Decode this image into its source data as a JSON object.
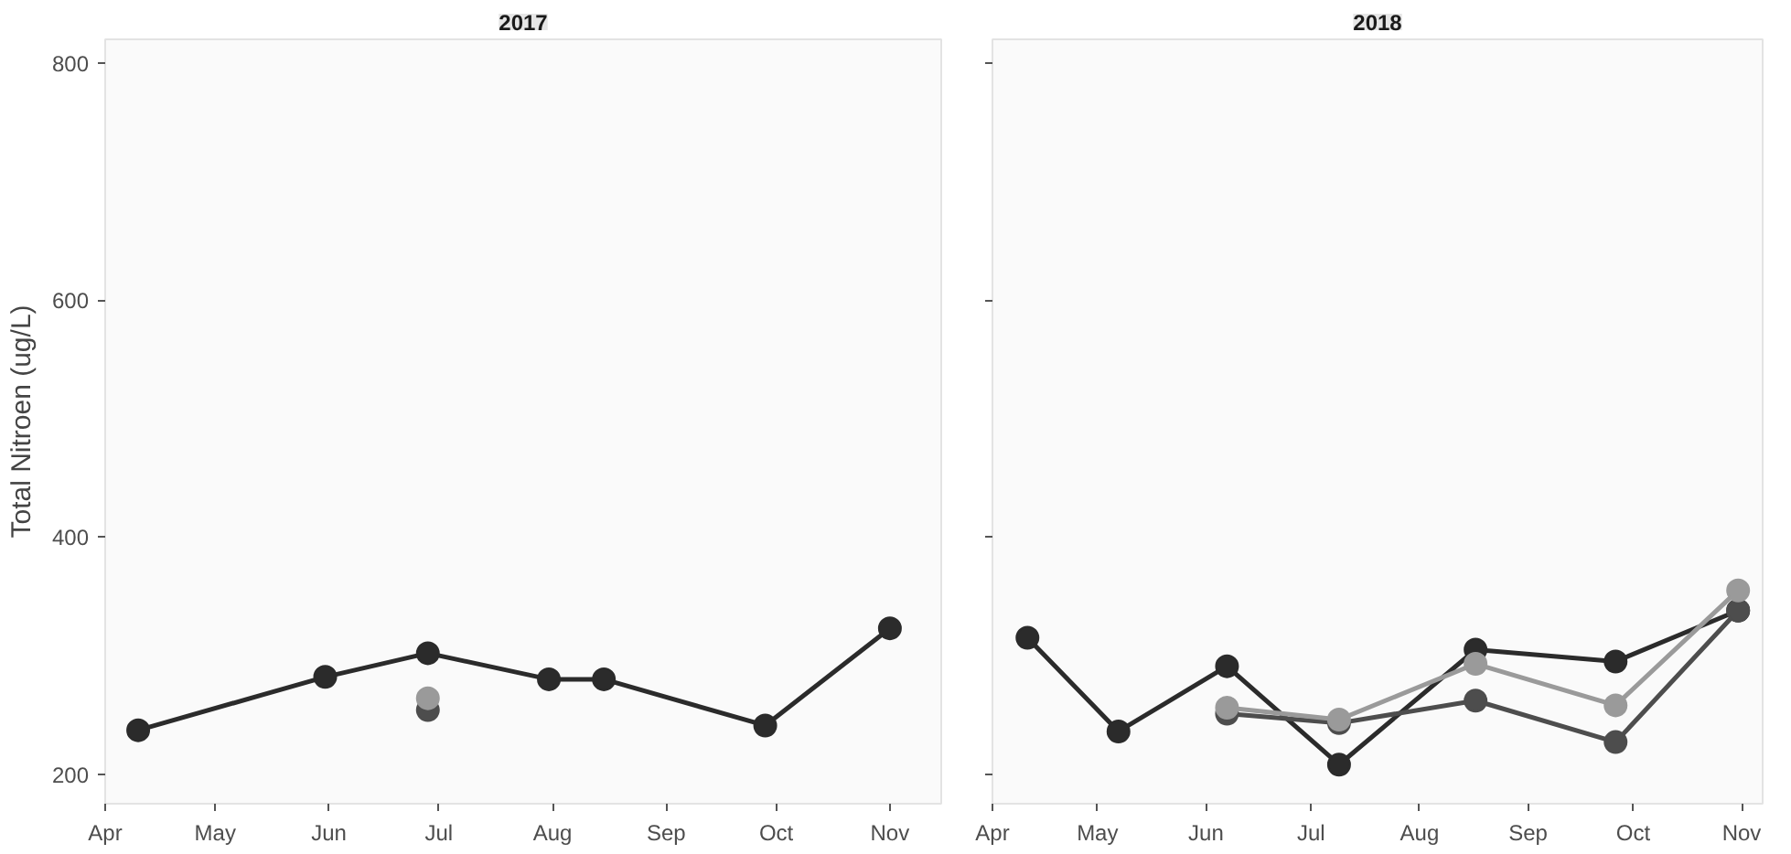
{
  "chart_data": [
    {
      "type": "line",
      "title": "2017",
      "ylabel": "Total Nitroen (ug/L)",
      "marker": "circle",
      "line_style": "solid",
      "xlim": [
        "2017-04-01",
        "2017-11-15"
      ],
      "ylim": [
        175,
        820
      ],
      "yticks": [
        200,
        400,
        600,
        800
      ],
      "xticks": [
        {
          "value": "2017-04-01",
          "label": "Apr"
        },
        {
          "value": "2017-05-01",
          "label": "May"
        },
        {
          "value": "2017-06-01",
          "label": "Jun"
        },
        {
          "value": "2017-07-01",
          "label": "Jul"
        },
        {
          "value": "2017-08-01",
          "label": "Aug"
        },
        {
          "value": "2017-09-01",
          "label": "Sep"
        },
        {
          "value": "2017-10-01",
          "label": "Oct"
        },
        {
          "value": "2017-11-01",
          "label": "Nov"
        }
      ],
      "series": [
        {
          "color": "#2b2b2b",
          "x": [
            "2017-04-10",
            "2017-05-31",
            "2017-06-28",
            "2017-07-31",
            "2017-08-15",
            "2017-09-28",
            "2017-11-01"
          ],
          "values": [
            237,
            282,
            302,
            280,
            280,
            241,
            323
          ]
        },
        {
          "color": "#4d4d4d",
          "x": [
            "2017-06-28"
          ],
          "values": [
            254
          ]
        },
        {
          "color": "#9a9a9a",
          "x": [
            "2017-06-28"
          ],
          "values": [
            264
          ]
        }
      ]
    },
    {
      "type": "line",
      "title": "2018",
      "marker": "circle",
      "line_style": "solid",
      "tick_labels": "x",
      "xlim": [
        "2018-04-01",
        "2018-11-07"
      ],
      "ylim": [
        175,
        820
      ],
      "yticks": [
        200,
        400,
        600,
        800
      ],
      "xticks": [
        {
          "value": "2018-04-01",
          "label": "Apr"
        },
        {
          "value": "2018-05-01",
          "label": "May"
        },
        {
          "value": "2018-06-01",
          "label": "Jun"
        },
        {
          "value": "2018-07-01",
          "label": "Jul"
        },
        {
          "value": "2018-08-01",
          "label": "Aug"
        },
        {
          "value": "2018-09-01",
          "label": "Sep"
        },
        {
          "value": "2018-10-01",
          "label": "Oct"
        },
        {
          "value": "2018-11-01",
          "label": "Nov"
        }
      ],
      "series": [
        {
          "color": "#2b2b2b",
          "x": [
            "2018-04-11",
            "2018-05-07",
            "2018-06-07",
            "2018-07-09",
            "2018-08-17",
            "2018-09-26",
            "2018-10-31"
          ],
          "values": [
            315,
            236,
            291,
            208,
            305,
            295,
            338
          ]
        },
        {
          "color": "#4d4d4d",
          "x": [
            "2018-06-07",
            "2018-07-09",
            "2018-08-17",
            "2018-09-26",
            "2018-10-31"
          ],
          "values": [
            251,
            243,
            262,
            227,
            338
          ]
        },
        {
          "color": "#9a9a9a",
          "x": [
            "2018-06-07",
            "2018-07-09",
            "2018-08-17",
            "2018-09-26",
            "2018-10-31"
          ],
          "values": [
            256,
            246,
            293,
            258,
            355
          ]
        }
      ]
    }
  ]
}
